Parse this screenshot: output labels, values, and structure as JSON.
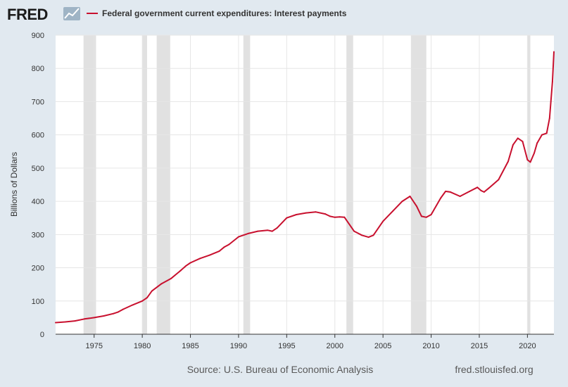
{
  "header": {
    "logo_text": "FRED",
    "logo_icon": "line-chart-icon"
  },
  "footer": {
    "source": "Source: U.S. Bureau of Economic Analysis",
    "site": "fred.stlouisfed.org"
  },
  "colors": {
    "background": "#e1e9f0",
    "plot_background": "#ffffff",
    "series": "#c8102e",
    "recession": "#e1e1e1",
    "grid": "#e6e6e6"
  },
  "chart_data": {
    "type": "line",
    "title": "",
    "xlabel": "",
    "ylabel": "Billions of Dollars",
    "xlim": [
      1971.0,
      2022.75
    ],
    "ylim": [
      0,
      900
    ],
    "yticks": [
      0,
      100,
      200,
      300,
      400,
      500,
      600,
      700,
      800,
      900
    ],
    "xticks": [
      1975,
      1980,
      1985,
      1990,
      1995,
      2000,
      2005,
      2010,
      2015,
      2020
    ],
    "grid": true,
    "legend_position": "top-left",
    "recessions": [
      [
        1973.9,
        1975.2
      ],
      [
        1980.0,
        1980.5
      ],
      [
        1981.5,
        1982.9
      ],
      [
        1990.5,
        1991.2
      ],
      [
        2001.2,
        2001.9
      ],
      [
        2007.9,
        2009.5
      ],
      [
        2020.0,
        2020.3
      ]
    ],
    "series": [
      {
        "name": "Federal government current expenditures: Interest payments",
        "x": [
          1971.0,
          1972.0,
          1973.0,
          1974.0,
          1975.0,
          1976.0,
          1977.0,
          1977.5,
          1978.0,
          1979.0,
          1980.0,
          1980.5,
          1981.0,
          1982.0,
          1983.0,
          1984.0,
          1984.5,
          1985.0,
          1986.0,
          1987.0,
          1988.0,
          1988.5,
          1989.0,
          1990.0,
          1991.0,
          1992.0,
          1993.0,
          1993.5,
          1994.0,
          1995.0,
          1996.0,
          1997.0,
          1998.0,
          1999.0,
          1999.5,
          2000.0,
          2000.5,
          2001.0,
          2002.0,
          2002.8,
          2003.5,
          2004.0,
          2005.0,
          2006.0,
          2007.0,
          2007.8,
          2008.5,
          2009.0,
          2009.5,
          2010.0,
          2011.0,
          2011.5,
          2012.0,
          2013.0,
          2014.0,
          2014.8,
          2015.2,
          2015.5,
          2016.0,
          2017.0,
          2018.0,
          2018.5,
          2019.0,
          2019.5,
          2020.0,
          2020.3,
          2020.7,
          2021.0,
          2021.5,
          2022.0,
          2022.3,
          2022.6,
          2022.75
        ],
        "values": [
          35,
          37,
          40,
          46,
          50,
          55,
          62,
          67,
          75,
          88,
          100,
          110,
          130,
          152,
          168,
          192,
          205,
          215,
          228,
          238,
          250,
          262,
          270,
          293,
          303,
          310,
          313,
          310,
          320,
          350,
          360,
          365,
          368,
          362,
          355,
          352,
          353,
          352,
          310,
          298,
          292,
          298,
          340,
          370,
          400,
          415,
          385,
          355,
          352,
          360,
          410,
          430,
          428,
          415,
          430,
          442,
          432,
          428,
          440,
          465,
          520,
          570,
          590,
          580,
          525,
          518,
          545,
          575,
          600,
          605,
          650,
          760,
          850
        ]
      }
    ]
  }
}
